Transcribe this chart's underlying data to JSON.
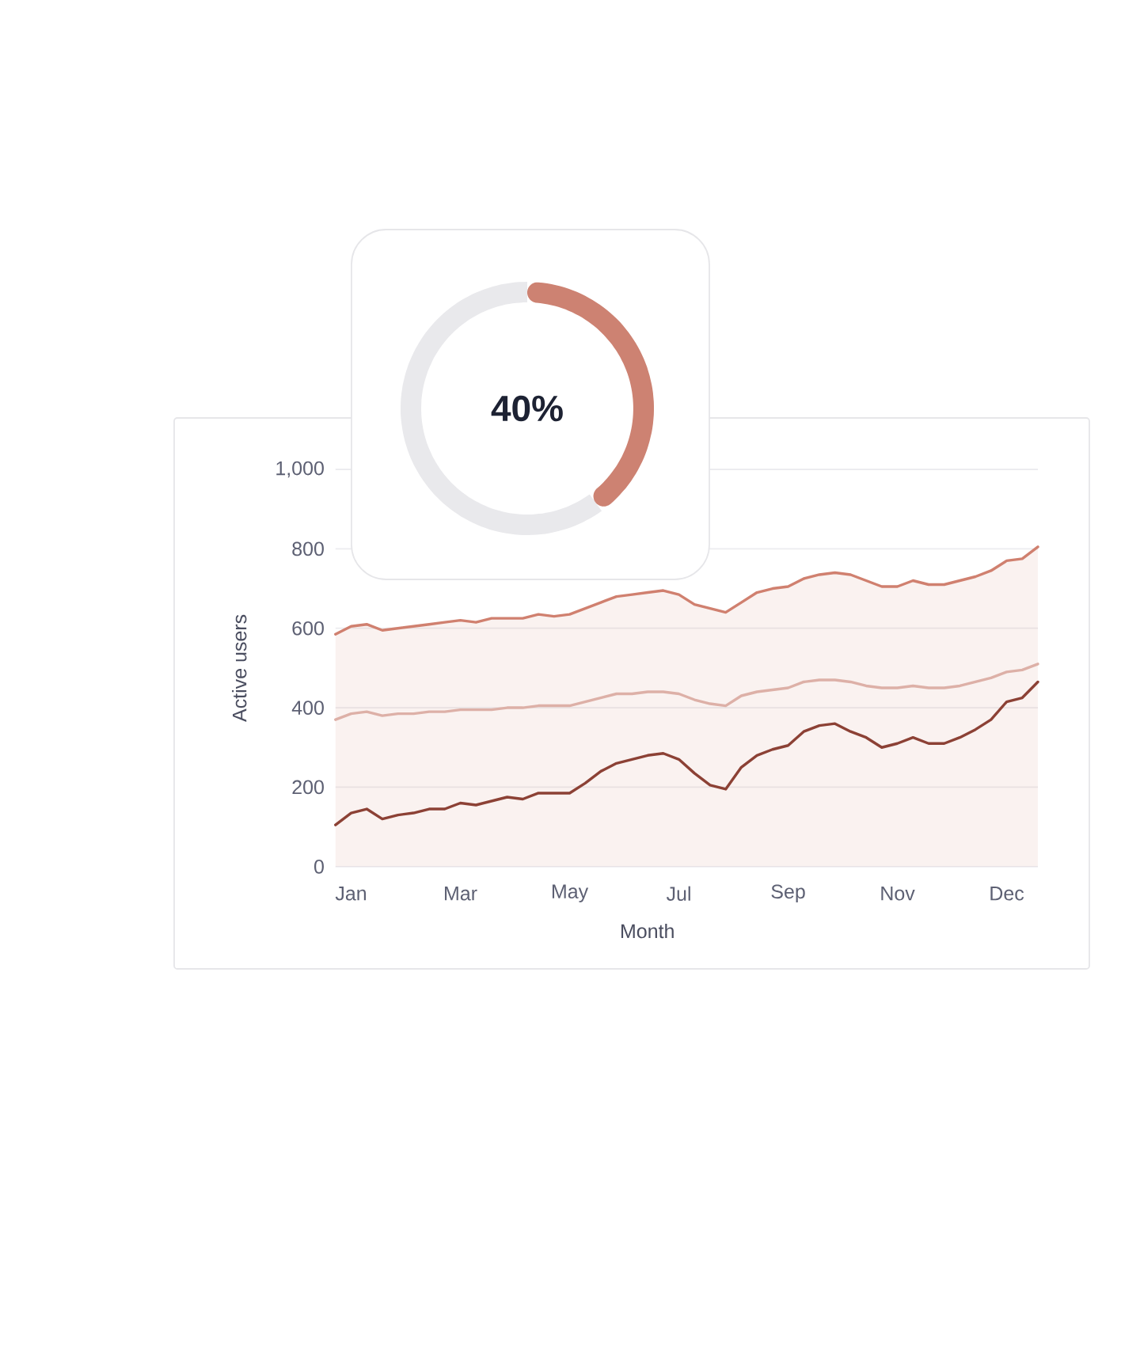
{
  "chart_data": [
    {
      "type": "donut",
      "categories": [
        null,
        null
      ],
      "values": [
        40,
        60
      ],
      "colors": [
        "#cd8272",
        "#e9e9ec"
      ],
      "annotations": [
        "40%"
      ]
    },
    {
      "type": "line",
      "xlabel": "Month",
      "ylabel": "Active users",
      "categories": [
        null,
        "Jan",
        null,
        null,
        null,
        null,
        null,
        null,
        "Mar",
        null,
        null,
        null,
        null,
        null,
        null,
        "May",
        null,
        null,
        null,
        null,
        null,
        null,
        "Jul",
        null,
        null,
        null,
        null,
        null,
        null,
        "Sep",
        null,
        null,
        null,
        null,
        null,
        null,
        "Nov",
        null,
        null,
        null,
        null,
        null,
        null,
        "Dec",
        null,
        null
      ],
      "ylim": [
        0,
        1000
      ],
      "yticks": [
        0,
        200,
        400,
        600,
        800,
        {
          "value": 1000,
          "label": "1,000"
        }
      ],
      "grid": "y",
      "series": [
        {
          "type": "area",
          "color": "#d0806f",
          "values": [
            585,
            605,
            610,
            595,
            600,
            605,
            610,
            615,
            620,
            615,
            625,
            625,
            625,
            635,
            630,
            635,
            650,
            665,
            680,
            685,
            690,
            695,
            685,
            660,
            650,
            640,
            665,
            690,
            700,
            705,
            725,
            735,
            740,
            735,
            720,
            705,
            705,
            720,
            710,
            710,
            720,
            730,
            745,
            770,
            775,
            805
          ]
        },
        {
          "color": "#ddb0a7",
          "values": [
            370,
            385,
            390,
            380,
            385,
            385,
            390,
            390,
            395,
            395,
            395,
            400,
            400,
            405,
            405,
            405,
            415,
            425,
            435,
            435,
            440,
            440,
            435,
            420,
            410,
            405,
            430,
            440,
            445,
            450,
            465,
            470,
            470,
            465,
            455,
            450,
            450,
            455,
            450,
            450,
            455,
            465,
            475,
            490,
            495,
            510
          ]
        },
        {
          "color": "#8c4135",
          "values": [
            105,
            135,
            145,
            120,
            130,
            135,
            145,
            145,
            160,
            155,
            165,
            175,
            170,
            185,
            185,
            185,
            210,
            240,
            260,
            270,
            280,
            285,
            270,
            235,
            205,
            195,
            250,
            280,
            295,
            305,
            340,
            355,
            360,
            340,
            325,
            300,
            310,
            325,
            310,
            310,
            325,
            345,
            370,
            415,
            425,
            465
          ]
        }
      ]
    }
  ]
}
